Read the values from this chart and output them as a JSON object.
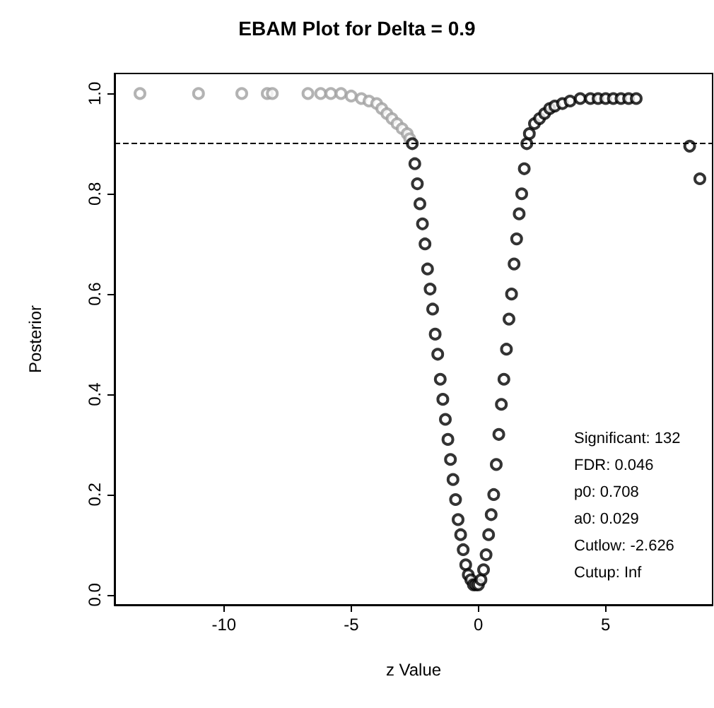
{
  "chart_data": {
    "type": "scatter",
    "title": "EBAM Plot for Delta = 0.9",
    "xlabel": "z Value",
    "ylabel": "Posterior",
    "annotations": [
      "Significant: 132",
      "FDR: 0.046",
      "p0: 0.708",
      "a0: 0.029",
      "Cutlow: -2.626",
      "Cutup: Inf"
    ],
    "marker": "circle",
    "grid": false,
    "xlim": [
      -14.3,
      9.2
    ],
    "xticks": [
      -10,
      -5,
      0,
      5
    ],
    "ylim": [
      -0.02,
      1.04
    ],
    "yticks": [
      {
        "value": 0,
        "label": "0.0"
      },
      {
        "value": 0.2,
        "label": "0.2"
      },
      {
        "value": 0.4,
        "label": "0.4"
      },
      {
        "value": 0.6,
        "label": "0.6"
      },
      {
        "value": 0.8,
        "label": "0.8"
      },
      {
        "value": 1,
        "label": "1.0"
      }
    ],
    "ref_lines": [
      {
        "axis": "y",
        "value": 0.9,
        "line_style": "dashed",
        "color": "#000000"
      }
    ],
    "series": [
      {
        "color": "#a0a0a0",
        "x": [
          -13.3,
          -11,
          -9.3,
          -8.3,
          -8.1,
          -6.7,
          -6.2,
          -5.8,
          -5.4,
          -5.0,
          -4.6,
          -4.3,
          -4.0,
          -3.8,
          -3.6,
          -3.4,
          -3.2,
          -3.0,
          -2.8,
          -2.7
        ],
        "values": [
          1,
          1,
          1,
          1,
          1,
          1,
          1,
          1,
          1,
          0.995,
          0.99,
          0.985,
          0.98,
          0.97,
          0.96,
          0.95,
          0.94,
          0.93,
          0.92,
          0.91
        ]
      },
      {
        "color": "#000000",
        "x": [
          -2.6,
          -2.5,
          -2.4,
          -2.3,
          -2.2,
          -2.1,
          -2.0,
          -1.9,
          -1.8,
          -1.7,
          -1.6,
          -1.5,
          -1.4,
          -1.3,
          -1.2,
          -1.1,
          -1.0,
          -0.9,
          -0.8,
          -0.7,
          -0.6,
          -0.5,
          -0.4,
          -0.3,
          -0.2,
          -0.1,
          0,
          0.1,
          0.2,
          0.3,
          0.4,
          0.5,
          0.6,
          0.7,
          0.8,
          0.9,
          1.0,
          1.1,
          1.2,
          1.3,
          1.4,
          1.5,
          1.6,
          1.7,
          1.8,
          1.9,
          2.0,
          2.2,
          2.4,
          2.6,
          2.8,
          3.0,
          3.3,
          3.6,
          4.0,
          4.4,
          4.7,
          5.0,
          5.3,
          5.6,
          5.9,
          6.2,
          8.3,
          8.7
        ],
        "values": [
          0.9,
          0.86,
          0.82,
          0.78,
          0.74,
          0.7,
          0.65,
          0.61,
          0.57,
          0.52,
          0.48,
          0.43,
          0.39,
          0.35,
          0.31,
          0.27,
          0.23,
          0.19,
          0.15,
          0.12,
          0.09,
          0.06,
          0.04,
          0.03,
          0.02,
          0.02,
          0.02,
          0.03,
          0.05,
          0.08,
          0.12,
          0.16,
          0.2,
          0.26,
          0.32,
          0.38,
          0.43,
          0.49,
          0.55,
          0.6,
          0.66,
          0.71,
          0.76,
          0.8,
          0.85,
          0.9,
          0.92,
          0.94,
          0.95,
          0.96,
          0.97,
          0.975,
          0.98,
          0.985,
          0.99,
          0.99,
          0.99,
          0.99,
          0.99,
          0.99,
          0.99,
          0.99,
          0.895,
          0.83
        ]
      }
    ]
  }
}
